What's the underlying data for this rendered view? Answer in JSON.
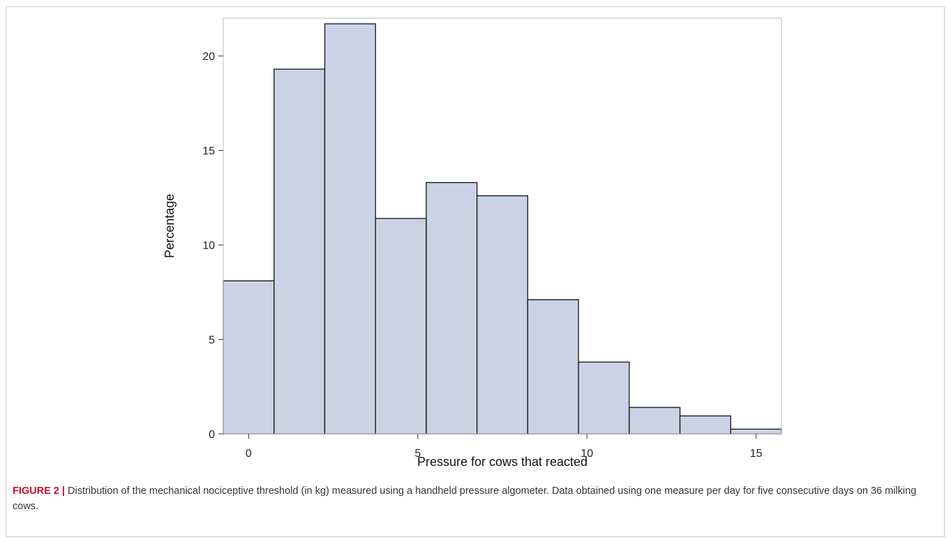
{
  "chart_data": {
    "type": "bar",
    "histogram": true,
    "bin_width": 1.5,
    "bins": [
      {
        "start": -0.75,
        "end": 0.75,
        "value": 8.1
      },
      {
        "start": 0.75,
        "end": 2.25,
        "value": 19.3
      },
      {
        "start": 2.25,
        "end": 3.75,
        "value": 21.7
      },
      {
        "start": 3.75,
        "end": 5.25,
        "value": 11.4
      },
      {
        "start": 5.25,
        "end": 6.75,
        "value": 13.3
      },
      {
        "start": 6.75,
        "end": 8.25,
        "value": 12.6
      },
      {
        "start": 8.25,
        "end": 9.75,
        "value": 7.1
      },
      {
        "start": 9.75,
        "end": 11.25,
        "value": 3.8
      },
      {
        "start": 11.25,
        "end": 12.75,
        "value": 1.4
      },
      {
        "start": 12.75,
        "end": 14.25,
        "value": 0.95
      },
      {
        "start": 14.25,
        "end": 15.75,
        "value": 0.25
      }
    ],
    "xlabel": "Pressure for cows that reacted",
    "ylabel": "Percentage",
    "xlim": [
      -0.75,
      15.75
    ],
    "ylim": [
      0,
      22
    ],
    "xticks": [
      0,
      5,
      10,
      15
    ],
    "yticks": [
      0,
      5,
      10,
      15,
      20
    ],
    "grid": false,
    "colors": {
      "bar_fill": "#c9d3e5",
      "bar_edge": "#111111",
      "plot_border": "#bbbbbb"
    }
  },
  "caption": {
    "label": "FIGURE 2 |",
    "text": "Distribution of the mechanical nociceptive threshold (in kg) measured using a handheld pressure algometer. Data obtained using one measure per day for five consecutive days on 36 milking cows."
  }
}
